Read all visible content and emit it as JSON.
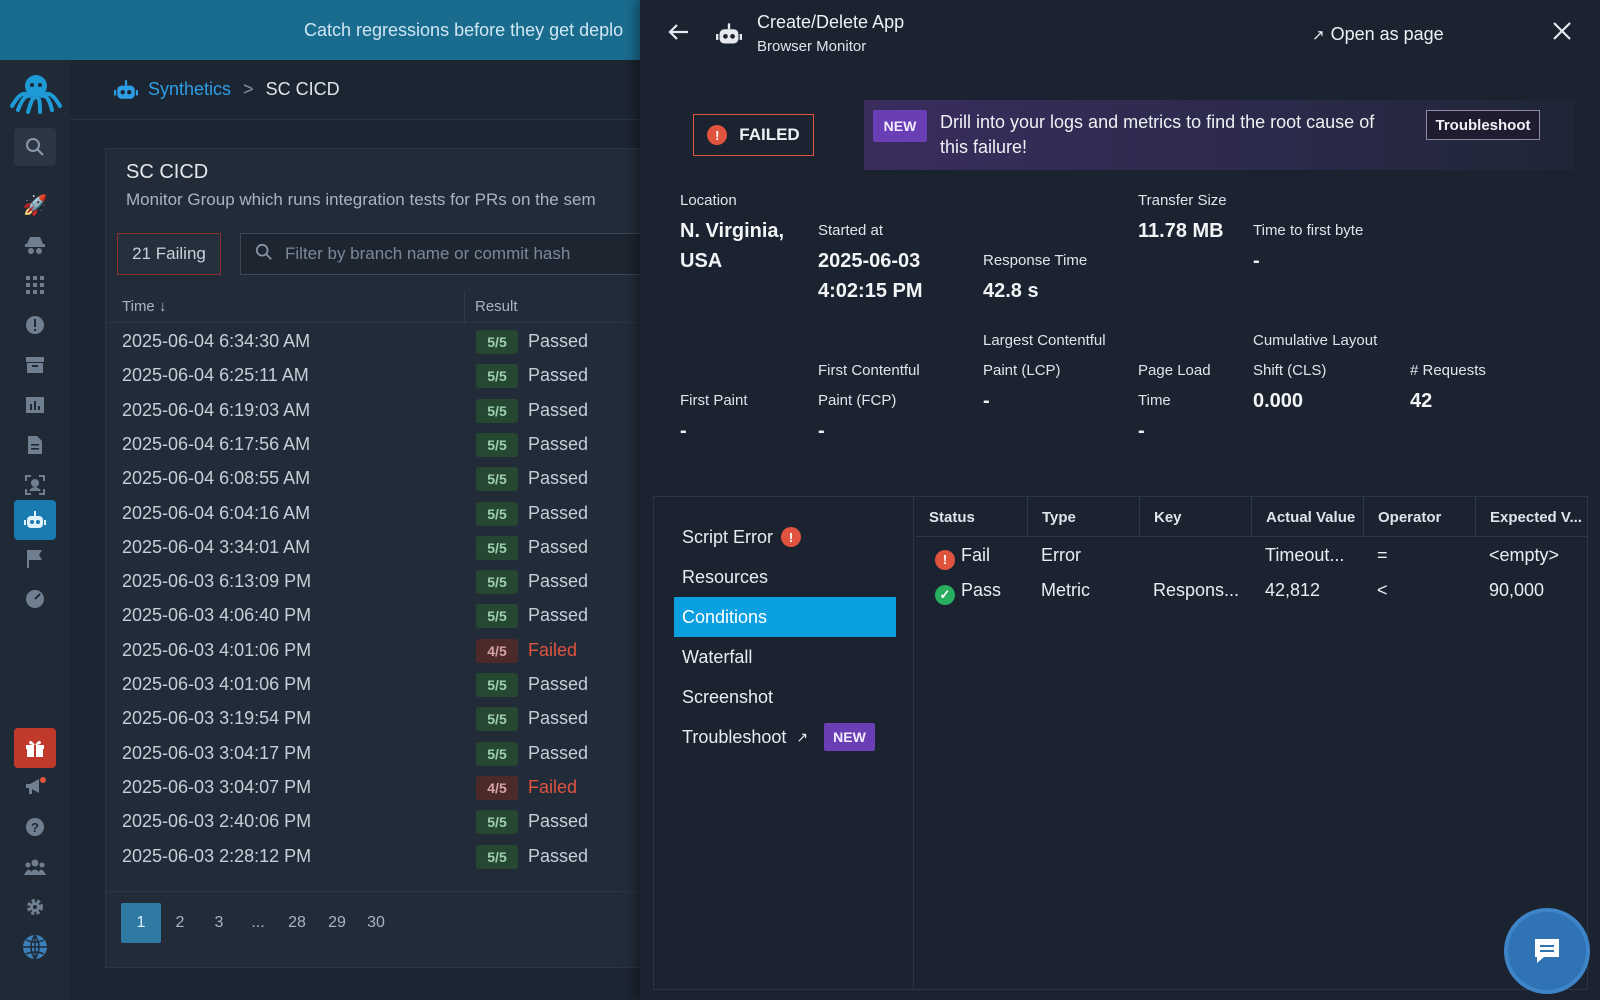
{
  "banner": {
    "text": "Catch regressions before they get deplo"
  },
  "breadcrumb": {
    "root": "Synthetics",
    "separator": ">",
    "current": "SC CICD"
  },
  "group": {
    "title": "SC CICD",
    "subtitle": "Monitor Group which runs integration tests for PRs on the sem",
    "failing_label": "21 Failing",
    "filter_placeholder": "Filter by branch name or commit hash",
    "col_time": "Time ↓",
    "col_result": "Result",
    "rows": [
      {
        "time": "2025-06-04 6:34:30 AM",
        "score": "5/5",
        "result": "Passed"
      },
      {
        "time": "2025-06-04 6:25:11 AM",
        "score": "5/5",
        "result": "Passed"
      },
      {
        "time": "2025-06-04 6:19:03 AM",
        "score": "5/5",
        "result": "Passed"
      },
      {
        "time": "2025-06-04 6:17:56 AM",
        "score": "5/5",
        "result": "Passed"
      },
      {
        "time": "2025-06-04 6:08:55 AM",
        "score": "5/5",
        "result": "Passed"
      },
      {
        "time": "2025-06-04 6:04:16 AM",
        "score": "5/5",
        "result": "Passed"
      },
      {
        "time": "2025-06-04 3:34:01 AM",
        "score": "5/5",
        "result": "Passed"
      },
      {
        "time": "2025-06-03 6:13:09 PM",
        "score": "5/5",
        "result": "Passed"
      },
      {
        "time": "2025-06-03 4:06:40 PM",
        "score": "5/5",
        "result": "Passed"
      },
      {
        "time": "2025-06-03 4:01:06 PM",
        "score": "4/5",
        "result": "Failed"
      },
      {
        "time": "2025-06-03 4:01:06 PM",
        "score": "5/5",
        "result": "Passed"
      },
      {
        "time": "2025-06-03 3:19:54 PM",
        "score": "5/5",
        "result": "Passed"
      },
      {
        "time": "2025-06-03 3:04:17 PM",
        "score": "5/5",
        "result": "Passed"
      },
      {
        "time": "2025-06-03 3:04:07 PM",
        "score": "4/5",
        "result": "Failed"
      },
      {
        "time": "2025-06-03 2:40:06 PM",
        "score": "5/5",
        "result": "Passed"
      },
      {
        "time": "2025-06-03 2:28:12 PM",
        "score": "5/5",
        "result": "Passed"
      }
    ],
    "pages": [
      "1",
      "2",
      "3",
      "...",
      "28",
      "29",
      "30"
    ],
    "current_page": "1"
  },
  "panel": {
    "title": "Create/Delete App",
    "subtitle": "Browser Monitor",
    "open_as_page": "Open as page",
    "status": "FAILED",
    "notice": {
      "badge": "NEW",
      "text": "Drill into your logs and metrics to find the root cause of this failure!",
      "button": "Troubleshoot"
    },
    "metrics_row1": [
      {
        "label": "Location",
        "value": "N. Virginia, USA"
      },
      {
        "label": "Started at",
        "value": "2025-06-03 4:02:15 PM"
      },
      {
        "label": "Response Time",
        "value": "42.8 s"
      },
      {
        "label": "Transfer Size",
        "value": "11.78 MB"
      },
      {
        "label": "Time to first byte",
        "value": "-"
      }
    ],
    "metrics_row2": [
      {
        "label": "First Paint",
        "value": "-"
      },
      {
        "label": "First Contentful Paint (FCP)",
        "value": "-"
      },
      {
        "label": "Largest Contentful Paint (LCP)",
        "value": "-"
      },
      {
        "label": "Page Load Time",
        "value": "-"
      },
      {
        "label": "Cumulative Layout Shift (CLS)",
        "value": "0.000"
      },
      {
        "label": "# Requests",
        "value": "42"
      }
    ],
    "nav": {
      "script_error": "Script Error",
      "resources": "Resources",
      "conditions": "Conditions",
      "waterfall": "Waterfall",
      "screenshot": "Screenshot",
      "troubleshoot": "Troubleshoot",
      "troubleshoot_badge": "NEW"
    },
    "conditions": {
      "headers": [
        "Status",
        "Type",
        "Key",
        "Actual Value",
        "Operator",
        "Expected V..."
      ],
      "rows": [
        {
          "status": "Fail",
          "type": "Error",
          "key": "",
          "actual": "Timeout...",
          "operator": "=",
          "expected": "<empty>"
        },
        {
          "status": "Pass",
          "type": "Metric",
          "key": "Respons...",
          "actual": "42,812",
          "operator": "<",
          "expected": "90,000"
        }
      ]
    }
  },
  "icons": {
    "sidebar": [
      "search-icon",
      "rocket-icon",
      "spy-icon",
      "apps-grid-icon",
      "alert-icon",
      "inbox-icon",
      "chart-icon",
      "document-icon",
      "user-scan-icon",
      "robot-icon",
      "flag-icon",
      "gauge-icon",
      "gift-icon",
      "megaphone-icon",
      "help-icon",
      "team-icon",
      "gear-icon",
      "globe-icon"
    ]
  },
  "colors": {
    "accent": "#0a9fe0",
    "fail": "#e0533f",
    "pass": "#27ae60",
    "new_badge": "#6a3fb5",
    "banner": "#1a6c8f"
  }
}
